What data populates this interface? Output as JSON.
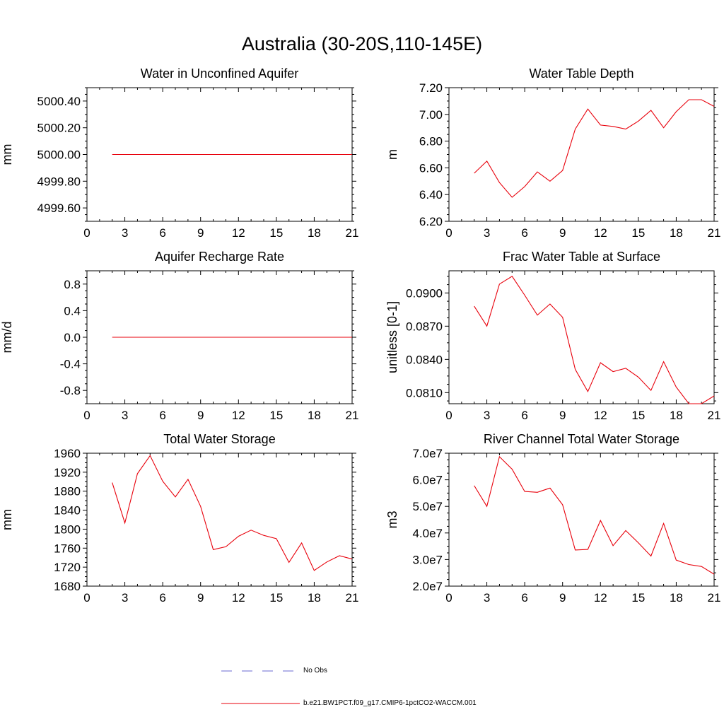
{
  "title": "Australia (30-20S,110-145E)",
  "legend": [
    {
      "label": "No Obs",
      "color": "#6a6ad0",
      "dash": true
    },
    {
      "label": "b.e21.BW1PCT.f09_g17.CMIP6-1pctCO2-WACCM.001",
      "color": "#e8000b",
      "dash": false
    }
  ],
  "chart_data": [
    {
      "type": "line",
      "title": "Water in Unconfined Aquifer",
      "ylabel": "mm",
      "xlim": [
        0,
        21
      ],
      "ylim": [
        4999.5,
        5000.5
      ],
      "xticks": [
        0,
        3,
        6,
        9,
        12,
        15,
        18,
        21
      ],
      "yticks": [
        4999.6,
        4999.8,
        5000.0,
        5000.2,
        5000.4
      ],
      "ytick_labels": [
        "4999.60",
        "4999.80",
        "5000.00",
        "5000.20",
        "5000.40"
      ],
      "x": [
        2,
        21
      ],
      "series": [
        {
          "values": [
            5000.0,
            5000.0
          ],
          "color": "#e8000b"
        }
      ]
    },
    {
      "type": "line",
      "title": "Water Table Depth",
      "ylabel": "m",
      "xlim": [
        0,
        21
      ],
      "ylim": [
        6.2,
        7.2
      ],
      "xticks": [
        0,
        3,
        6,
        9,
        12,
        15,
        18,
        21
      ],
      "yticks": [
        6.2,
        6.4,
        6.6,
        6.8,
        7.0,
        7.2
      ],
      "ytick_labels": [
        "6.20",
        "6.40",
        "6.60",
        "6.80",
        "7.00",
        "7.20"
      ],
      "x": [
        2,
        3,
        4,
        5,
        6,
        7,
        8,
        9,
        10,
        11,
        12,
        13,
        14,
        15,
        16,
        17,
        18,
        19,
        20,
        21
      ],
      "series": [
        {
          "values": [
            6.56,
            6.65,
            6.49,
            6.38,
            6.46,
            6.57,
            6.5,
            6.58,
            6.89,
            7.04,
            6.92,
            6.91,
            6.89,
            6.95,
            7.03,
            6.9,
            7.02,
            7.11,
            7.11,
            7.06
          ],
          "color": "#e8000b"
        }
      ]
    },
    {
      "type": "line",
      "title": "Aquifer Recharge Rate",
      "ylabel": "mm/d",
      "xlim": [
        0,
        21
      ],
      "ylim": [
        -1.0,
        1.0
      ],
      "xticks": [
        0,
        3,
        6,
        9,
        12,
        15,
        18,
        21
      ],
      "yticks": [
        -0.8,
        -0.4,
        0.0,
        0.4,
        0.8
      ],
      "ytick_labels": [
        "-0.8",
        "-0.4",
        "0.0",
        "0.4",
        "0.8"
      ],
      "x": [
        2,
        21
      ],
      "series": [
        {
          "values": [
            0.0,
            0.0
          ],
          "color": "#e8000b"
        }
      ]
    },
    {
      "type": "line",
      "title": "Frac Water Table at Surface",
      "ylabel": "unitless [0-1]",
      "xlim": [
        0,
        21
      ],
      "ylim": [
        0.08,
        0.092
      ],
      "xticks": [
        0,
        3,
        6,
        9,
        12,
        15,
        18,
        21
      ],
      "yticks": [
        0.081,
        0.084,
        0.087,
        0.09
      ],
      "ytick_labels": [
        "0.0810",
        "0.0840",
        "0.0870",
        "0.0900"
      ],
      "x": [
        2,
        3,
        4,
        5,
        6,
        7,
        8,
        9,
        10,
        11,
        12,
        13,
        14,
        15,
        16,
        17,
        18,
        19,
        20,
        21
      ],
      "series": [
        {
          "values": [
            0.0888,
            0.087,
            0.0908,
            0.0915,
            0.0898,
            0.088,
            0.089,
            0.0878,
            0.0831,
            0.0811,
            0.0837,
            0.0829,
            0.0832,
            0.0824,
            0.0812,
            0.0838,
            0.0815,
            0.08,
            0.08,
            0.0807
          ],
          "color": "#e8000b"
        }
      ]
    },
    {
      "type": "line",
      "title": "Total Water Storage",
      "ylabel": "mm",
      "xlim": [
        0,
        21
      ],
      "ylim": [
        1680,
        1960
      ],
      "xticks": [
        0,
        3,
        6,
        9,
        12,
        15,
        18,
        21
      ],
      "yticks": [
        1680,
        1720,
        1760,
        1800,
        1840,
        1880,
        1920,
        1960
      ],
      "ytick_labels": [
        "1680",
        "1720",
        "1760",
        "1800",
        "1840",
        "1880",
        "1920",
        "1960"
      ],
      "x": [
        2,
        3,
        4,
        5,
        6,
        7,
        8,
        9,
        10,
        11,
        12,
        13,
        14,
        15,
        16,
        17,
        18,
        19,
        20,
        21
      ],
      "series": [
        {
          "values": [
            1898,
            1813,
            1917,
            1955,
            1901,
            1868,
            1905,
            1848,
            1757,
            1763,
            1785,
            1798,
            1787,
            1780,
            1730,
            1771,
            1713,
            1731,
            1744,
            1737
          ],
          "color": "#e8000b"
        }
      ]
    },
    {
      "type": "line",
      "title": "River Channel Total Water Storage",
      "ylabel": "m3",
      "xlim": [
        0,
        21
      ],
      "ylim": [
        20000000,
        70000000
      ],
      "xticks": [
        0,
        3,
        6,
        9,
        12,
        15,
        18,
        21
      ],
      "yticks": [
        20000000,
        30000000,
        40000000,
        50000000,
        60000000,
        70000000
      ],
      "ytick_labels": [
        "2.0e7",
        "3.0e7",
        "4.0e7",
        "5.0e7",
        "6.0e7",
        "7.0e7"
      ],
      "x": [
        2,
        3,
        4,
        5,
        6,
        7,
        8,
        9,
        10,
        11,
        12,
        13,
        14,
        15,
        16,
        17,
        18,
        19,
        20,
        21
      ],
      "series": [
        {
          "values": [
            57800000,
            50000000,
            68700000,
            64000000,
            55600000,
            55300000,
            56900000,
            50600000,
            33600000,
            33800000,
            44700000,
            35200000,
            40900000,
            36300000,
            31300000,
            43600000,
            29800000,
            28100000,
            27400000,
            24500000
          ],
          "color": "#e8000b"
        }
      ]
    }
  ]
}
